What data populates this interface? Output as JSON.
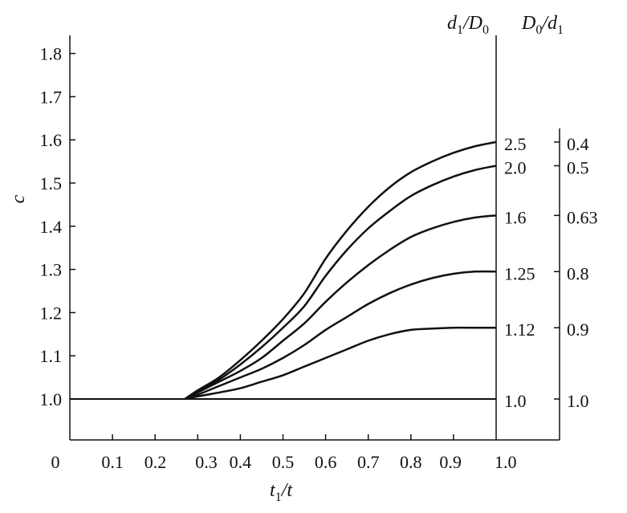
{
  "chart_data": {
    "type": "line",
    "xlabel": "t1/t",
    "ylabel": "c",
    "xlim": [
      0,
      1.0
    ],
    "ylim": [
      1.0,
      1.85
    ],
    "x_ticks": [
      "0",
      "0.1",
      "0.2",
      "0.3",
      "0.4",
      "0.5",
      "0.6",
      "0.7",
      "0.8",
      "0.9",
      "1.0"
    ],
    "y_ticks": [
      "1.0",
      "1.1",
      "1.2",
      "1.3",
      "1.4",
      "1.5",
      "1.6",
      "1.7",
      "1.8"
    ],
    "right_axis_1_title": "d1/D0",
    "right_axis_2_title": "D0/d1",
    "baseline": {
      "x": [
        0,
        1.0
      ],
      "y": [
        1.0,
        1.0
      ]
    },
    "x": [
      0.27,
      0.3,
      0.35,
      0.4,
      0.45,
      0.5,
      0.55,
      0.6,
      0.65,
      0.7,
      0.75,
      0.8,
      0.85,
      0.9,
      0.95,
      1.0
    ],
    "series": [
      {
        "name": "2.5",
        "right_label": "0.4",
        "values": [
          1.0,
          1.02,
          1.05,
          1.09,
          1.135,
          1.185,
          1.245,
          1.325,
          1.39,
          1.445,
          1.49,
          1.525,
          1.55,
          1.57,
          1.585,
          1.595
        ]
      },
      {
        "name": "2.0",
        "right_label": "0.5",
        "values": [
          1.0,
          1.017,
          1.045,
          1.08,
          1.12,
          1.165,
          1.215,
          1.285,
          1.345,
          1.395,
          1.435,
          1.47,
          1.495,
          1.515,
          1.53,
          1.54
        ]
      },
      {
        "name": "1.6",
        "right_label": "0.63",
        "values": [
          1.0,
          1.015,
          1.04,
          1.065,
          1.095,
          1.135,
          1.175,
          1.225,
          1.27,
          1.31,
          1.345,
          1.375,
          1.395,
          1.41,
          1.42,
          1.425
        ]
      },
      {
        "name": "1.25",
        "right_label": "0.8",
        "values": [
          1.0,
          1.01,
          1.03,
          1.05,
          1.07,
          1.095,
          1.125,
          1.16,
          1.19,
          1.22,
          1.245,
          1.265,
          1.28,
          1.29,
          1.295,
          1.295
        ]
      },
      {
        "name": "1.12",
        "right_label": "0.9",
        "values": [
          1.0,
          1.006,
          1.015,
          1.025,
          1.04,
          1.055,
          1.075,
          1.095,
          1.115,
          1.135,
          1.15,
          1.16,
          1.163,
          1.165,
          1.165,
          1.165
        ]
      }
    ],
    "baseline_labels": {
      "d1_D0": "1.0",
      "D0_d1": "1.0"
    },
    "grid": false,
    "legend": "none"
  }
}
